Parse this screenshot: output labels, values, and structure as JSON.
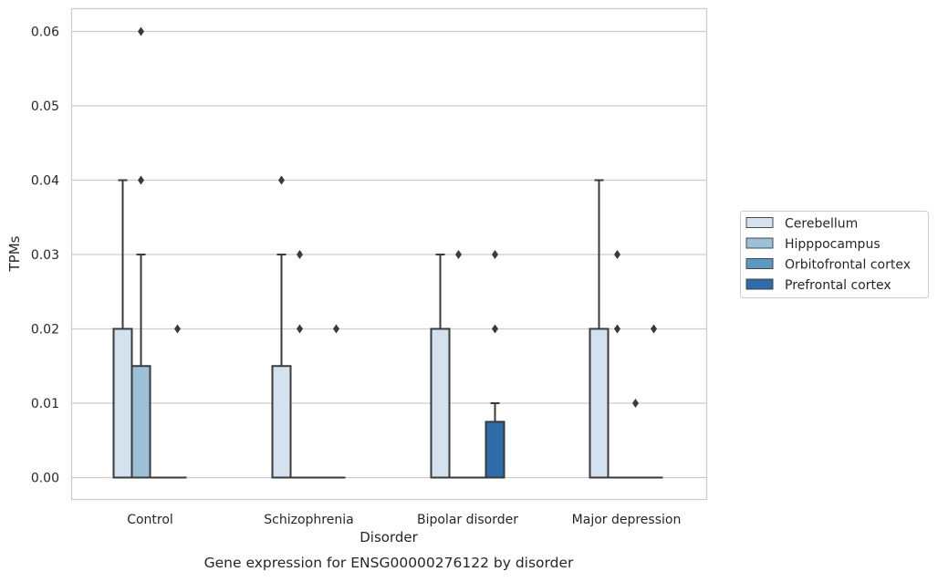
{
  "chart_data": {
    "type": "boxplot",
    "caption": "Gene expression for ENSG00000276122 by disorder",
    "xlabel": "Disorder",
    "ylabel": "TPMs",
    "ylim": [
      -0.003,
      0.063
    ],
    "yticks": [
      "0.00",
      "0.01",
      "0.02",
      "0.03",
      "0.04",
      "0.05",
      "0.06"
    ],
    "categories": [
      "Control",
      "Schizophrenia",
      "Bipolar disorder",
      "Major depression"
    ],
    "grid": "horizontal",
    "legend_position": "right",
    "series": [
      {
        "name": "Cerebellum",
        "color": "#d4e2f0",
        "boxes": [
          {
            "q1": 0,
            "median": 0,
            "q3": 0.02,
            "whisker_low": 0,
            "whisker_high": 0.04,
            "outliers": []
          },
          {
            "q1": 0,
            "median": 0,
            "q3": 0.015,
            "whisker_low": 0,
            "whisker_high": 0.03,
            "outliers": [
              0.04
            ]
          },
          {
            "q1": 0,
            "median": 0,
            "q3": 0.02,
            "whisker_low": 0,
            "whisker_high": 0.03,
            "outliers": []
          },
          {
            "q1": 0,
            "median": 0,
            "q3": 0.02,
            "whisker_low": 0,
            "whisker_high": 0.04,
            "outliers": []
          }
        ]
      },
      {
        "name": "Hipppocampus",
        "color": "#9bc0d8",
        "boxes": [
          {
            "q1": 0,
            "median": 0,
            "q3": 0.015,
            "whisker_low": 0,
            "whisker_high": 0.03,
            "outliers": [
              0.04,
              0.06
            ]
          },
          {
            "q1": 0,
            "median": 0,
            "q3": 0,
            "whisker_low": 0,
            "whisker_high": 0,
            "outliers": [
              0.02,
              0.03
            ]
          },
          {
            "q1": 0,
            "median": 0,
            "q3": 0,
            "whisker_low": 0,
            "whisker_high": 0,
            "outliers": [
              0.03
            ]
          },
          {
            "q1": 0,
            "median": 0,
            "q3": 0,
            "whisker_low": 0,
            "whisker_high": 0,
            "outliers": [
              0.02,
              0.03
            ]
          }
        ]
      },
      {
        "name": "Orbitofrontal cortex",
        "color": "#5b98c4",
        "boxes": [
          {
            "q1": 0,
            "median": 0,
            "q3": 0,
            "whisker_low": 0,
            "whisker_high": 0,
            "outliers": []
          },
          {
            "q1": 0,
            "median": 0,
            "q3": 0,
            "whisker_low": 0,
            "whisker_high": 0,
            "outliers": []
          },
          {
            "q1": 0,
            "median": 0,
            "q3": 0,
            "whisker_low": 0,
            "whisker_high": 0,
            "outliers": []
          },
          {
            "q1": 0,
            "median": 0,
            "q3": 0,
            "whisker_low": 0,
            "whisker_high": 0,
            "outliers": [
              0.01
            ]
          }
        ]
      },
      {
        "name": "Prefrontal cortex",
        "color": "#2d6ba9",
        "boxes": [
          {
            "q1": 0,
            "median": 0,
            "q3": 0,
            "whisker_low": 0,
            "whisker_high": 0,
            "outliers": [
              0.02
            ]
          },
          {
            "q1": 0,
            "median": 0,
            "q3": 0,
            "whisker_low": 0,
            "whisker_high": 0,
            "outliers": [
              0.02
            ]
          },
          {
            "q1": 0,
            "median": 0,
            "q3": 0.0075,
            "whisker_low": 0,
            "whisker_high": 0.01,
            "outliers": [
              0.02,
              0.03
            ]
          },
          {
            "q1": 0,
            "median": 0,
            "q3": 0,
            "whisker_low": 0,
            "whisker_high": 0,
            "outliers": [
              0.02
            ]
          }
        ]
      }
    ]
  }
}
